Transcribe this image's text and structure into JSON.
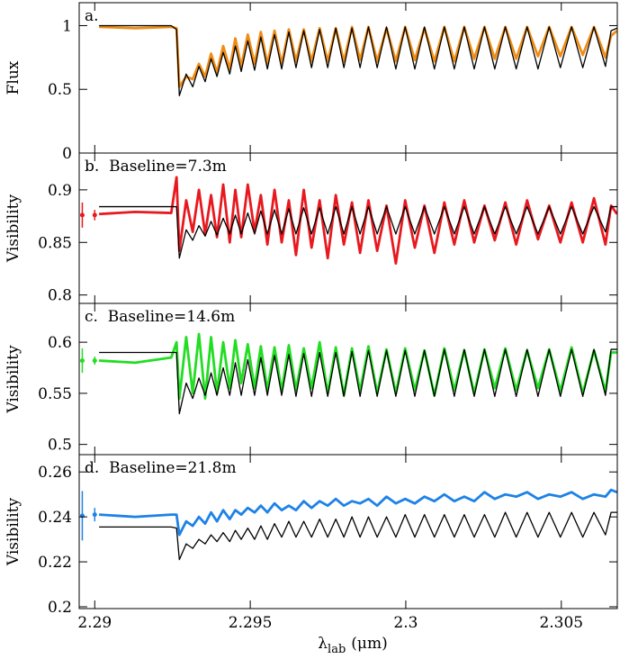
{
  "chart_data": {
    "type": "line",
    "xlabel": "λ",
    "xlabel_subscript": "lab",
    "xlabel_unit": "(μm)",
    "xlim": [
      2.2895,
      2.3068
    ],
    "xticks": [
      2.29,
      2.295,
      2.3,
      2.305
    ],
    "x": [
      2.29014,
      2.2913,
      2.29246,
      2.29263,
      2.29272,
      2.29294,
      2.29315,
      2.29335,
      2.29355,
      2.29374,
      2.29393,
      2.29413,
      2.29434,
      2.29452,
      2.29471,
      2.29492,
      2.29514,
      2.29534,
      2.29555,
      2.29578,
      2.29601,
      2.29624,
      2.29647,
      2.29672,
      2.29697,
      2.29723,
      2.29749,
      2.29775,
      2.29801,
      2.29827,
      2.29853,
      2.2988,
      2.29908,
      2.29938,
      2.29968,
      2.29998,
      2.30029,
      2.3006,
      2.30092,
      2.30124,
      2.30156,
      2.30188,
      2.3022,
      2.30253,
      2.30286,
      2.3032,
      2.30355,
      2.3039,
      2.30425,
      2.30461,
      2.30497,
      2.30533,
      2.30569,
      2.30605,
      2.30642,
      2.3066,
      2.30679
    ],
    "panels": [
      {
        "label": "a.",
        "ylabel": "Flux",
        "ylim": [
          0,
          1.18
        ],
        "yticks": [
          0,
          0.5,
          1
        ],
        "series": [
          {
            "color": "#f08c14",
            "values": [
              0.99,
              0.98,
              0.99,
              0.98,
              0.52,
              0.6,
              0.58,
              0.7,
              0.6,
              0.78,
              0.63,
              0.84,
              0.66,
              0.9,
              0.68,
              0.93,
              0.7,
              0.95,
              0.7,
              0.96,
              0.7,
              0.97,
              0.72,
              0.97,
              0.72,
              0.98,
              0.72,
              0.98,
              0.72,
              0.99,
              0.73,
              0.99,
              0.72,
              0.98,
              0.72,
              0.99,
              0.73,
              0.98,
              0.72,
              0.99,
              0.72,
              0.99,
              0.74,
              0.99,
              0.74,
              0.99,
              0.74,
              0.99,
              0.76,
              0.99,
              0.76,
              0.99,
              0.77,
              0.99,
              0.75,
              0.92,
              0.96
            ]
          },
          {
            "color": "#000000",
            "values": [
              1.0,
              1.0,
              1.0,
              0.97,
              0.45,
              0.62,
              0.52,
              0.68,
              0.56,
              0.74,
              0.6,
              0.79,
              0.62,
              0.84,
              0.64,
              0.88,
              0.65,
              0.91,
              0.66,
              0.93,
              0.66,
              0.95,
              0.67,
              0.96,
              0.67,
              0.97,
              0.67,
              0.98,
              0.67,
              0.98,
              0.67,
              0.99,
              0.67,
              0.99,
              0.66,
              0.99,
              0.66,
              0.99,
              0.66,
              0.99,
              0.66,
              0.99,
              0.66,
              0.99,
              0.66,
              0.99,
              0.66,
              0.99,
              0.66,
              0.99,
              0.67,
              0.99,
              0.67,
              0.99,
              0.68,
              0.96,
              0.98
            ]
          }
        ]
      },
      {
        "label": "b.  Baseline=7.3m",
        "ylabel": "Visibility",
        "ylim": [
          0.792,
          0.935
        ],
        "yticks": [
          0.8,
          0.85,
          0.9
        ],
        "errorbars": {
          "color": "#e8191e",
          "x": [
            2.2896,
            2.29
          ],
          "values": [
            0.876,
            0.876
          ],
          "errors": [
            0.012,
            0.005
          ]
        },
        "series": [
          {
            "color": "#e8191e",
            "values": [
              0.877,
              0.879,
              0.878,
              0.912,
              0.842,
              0.89,
              0.86,
              0.9,
              0.858,
              0.895,
              0.855,
              0.905,
              0.85,
              0.9,
              0.855,
              0.905,
              0.86,
              0.895,
              0.848,
              0.9,
              0.85,
              0.89,
              0.838,
              0.9,
              0.845,
              0.89,
              0.835,
              0.895,
              0.848,
              0.888,
              0.84,
              0.89,
              0.842,
              0.885,
              0.83,
              0.89,
              0.845,
              0.885,
              0.84,
              0.888,
              0.848,
              0.89,
              0.85,
              0.885,
              0.852,
              0.888,
              0.848,
              0.89,
              0.853,
              0.885,
              0.85,
              0.888,
              0.85,
              0.892,
              0.848,
              0.885,
              0.877
            ]
          },
          {
            "color": "#000000",
            "values": [
              0.884,
              0.884,
              0.884,
              0.884,
              0.835,
              0.862,
              0.852,
              0.866,
              0.856,
              0.87,
              0.857,
              0.873,
              0.858,
              0.876,
              0.858,
              0.878,
              0.858,
              0.88,
              0.858,
              0.881,
              0.858,
              0.882,
              0.858,
              0.883,
              0.858,
              0.883,
              0.858,
              0.884,
              0.858,
              0.884,
              0.858,
              0.884,
              0.858,
              0.884,
              0.858,
              0.884,
              0.858,
              0.884,
              0.858,
              0.884,
              0.858,
              0.884,
              0.858,
              0.884,
              0.858,
              0.884,
              0.858,
              0.884,
              0.858,
              0.884,
              0.858,
              0.884,
              0.858,
              0.884,
              0.86,
              0.884,
              0.884
            ]
          }
        ]
      },
      {
        "label": "c.  Baseline=14.6m",
        "ylabel": "Visibility",
        "ylim": [
          0.49,
          0.638
        ],
        "yticks": [
          0.5,
          0.55,
          0.6
        ],
        "errorbars": {
          "color": "#22dd22",
          "x": [
            2.2896,
            2.29
          ],
          "values": [
            0.582,
            0.582
          ],
          "errors": [
            0.012,
            0.004
          ]
        },
        "series": [
          {
            "color": "#22dd22",
            "values": [
              0.582,
              0.58,
              0.585,
              0.6,
              0.545,
              0.605,
              0.55,
              0.608,
              0.545,
              0.605,
              0.55,
              0.6,
              0.555,
              0.602,
              0.56,
              0.598,
              0.555,
              0.596,
              0.553,
              0.595,
              0.552,
              0.597,
              0.553,
              0.594,
              0.555,
              0.6,
              0.55,
              0.595,
              0.548,
              0.594,
              0.552,
              0.596,
              0.55,
              0.593,
              0.55,
              0.594,
              0.553,
              0.592,
              0.548,
              0.594,
              0.553,
              0.592,
              0.55,
              0.593,
              0.555,
              0.594,
              0.553,
              0.592,
              0.555,
              0.593,
              0.552,
              0.595,
              0.55,
              0.592,
              0.552,
              0.59,
              0.59
            ]
          },
          {
            "color": "#000000",
            "values": [
              0.59,
              0.59,
              0.59,
              0.59,
              0.53,
              0.56,
              0.545,
              0.565,
              0.548,
              0.57,
              0.548,
              0.575,
              0.548,
              0.58,
              0.548,
              0.583,
              0.548,
              0.585,
              0.548,
              0.587,
              0.548,
              0.588,
              0.547,
              0.589,
              0.547,
              0.59,
              0.547,
              0.59,
              0.547,
              0.591,
              0.547,
              0.592,
              0.547,
              0.592,
              0.547,
              0.592,
              0.547,
              0.592,
              0.547,
              0.593,
              0.547,
              0.593,
              0.547,
              0.593,
              0.547,
              0.593,
              0.547,
              0.593,
              0.547,
              0.593,
              0.547,
              0.593,
              0.547,
              0.593,
              0.548,
              0.593,
              0.593
            ]
          }
        ]
      },
      {
        "label": "d.  Baseline=21.8m",
        "ylabel": "Visibility",
        "ylim": [
          0.1992,
          0.2677
        ],
        "yticks": [
          0.2,
          0.22,
          0.24,
          0.26
        ],
        "errorbars": {
          "color": "#1e82e6",
          "x": [
            2.2896,
            2.29
          ],
          "values": [
            0.2405,
            0.241
          ],
          "errors": [
            0.011,
            0.003
          ]
        },
        "series": [
          {
            "color": "#1e82e6",
            "values": [
              0.241,
              0.24,
              0.241,
              0.241,
              0.232,
              0.238,
              0.236,
              0.24,
              0.237,
              0.242,
              0.238,
              0.243,
              0.239,
              0.243,
              0.241,
              0.244,
              0.242,
              0.245,
              0.242,
              0.246,
              0.243,
              0.245,
              0.243,
              0.247,
              0.244,
              0.247,
              0.245,
              0.248,
              0.245,
              0.247,
              0.246,
              0.248,
              0.245,
              0.249,
              0.246,
              0.248,
              0.246,
              0.249,
              0.247,
              0.25,
              0.247,
              0.249,
              0.247,
              0.251,
              0.248,
              0.25,
              0.249,
              0.251,
              0.248,
              0.25,
              0.249,
              0.251,
              0.248,
              0.25,
              0.249,
              0.252,
              0.251
            ]
          },
          {
            "color": "#000000",
            "values": [
              0.2355,
              0.2355,
              0.2355,
              0.235,
              0.221,
              0.228,
              0.226,
              0.23,
              0.228,
              0.232,
              0.229,
              0.233,
              0.229,
              0.234,
              0.23,
              0.235,
              0.23,
              0.236,
              0.23,
              0.237,
              0.231,
              0.238,
              0.231,
              0.238,
              0.231,
              0.239,
              0.231,
              0.239,
              0.231,
              0.24,
              0.231,
              0.24,
              0.231,
              0.24,
              0.231,
              0.241,
              0.231,
              0.241,
              0.231,
              0.241,
              0.231,
              0.241,
              0.231,
              0.241,
              0.231,
              0.242,
              0.231,
              0.242,
              0.231,
              0.242,
              0.231,
              0.242,
              0.231,
              0.242,
              0.232,
              0.242,
              0.242
            ]
          }
        ]
      }
    ]
  }
}
